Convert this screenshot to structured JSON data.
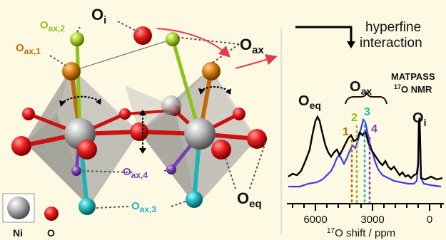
{
  "structure": {
    "oi_label": "O",
    "oi_sub": "i",
    "oax_label": "O",
    "oax_sub": "ax",
    "oax1_label": "O",
    "oax1_sub": "ax,1",
    "oax2_label": "O",
    "oax2_sub": "ax,2",
    "oax3_label": "O",
    "oax3_sub": "ax,3",
    "oax4_label": "O",
    "oax4_sub": "ax,4",
    "oeq_label": "O",
    "oeq_sub": "eq",
    "legend_ni": "Ni",
    "legend_o": "O"
  },
  "nmr": {
    "hyperfine_line1": "hyperfine",
    "hyperfine_line2": "interaction",
    "method_line1": "MATPASS",
    "method_line2_sup": "17",
    "method_line2": "O NMR",
    "peak_oeq": "O",
    "peak_oeq_sub": "eq",
    "peak_oax": "O",
    "peak_oax_sub": "ax",
    "peak_oi": "O",
    "peak_oi_sub": "i",
    "site_1": "1",
    "site_2": "2",
    "site_3": "3",
    "site_4": "4",
    "tick_6000": "6000",
    "tick_3000": "3000",
    "tick_0": "0",
    "axis_sup": "17",
    "axis_label": "O shift / ppm"
  },
  "colors": {
    "background": "#fdf9e3",
    "ni": "#9b9b9b",
    "oxygen": "#e41a1c",
    "site1": "#c26a0a",
    "site2": "#8dc21f",
    "site3": "#1fb3b8",
    "site4": "#7a3fb4",
    "spectrum_black": "#000000",
    "spectrum_blue": "#3a3af0",
    "arrow_red": "#e8394b"
  }
}
